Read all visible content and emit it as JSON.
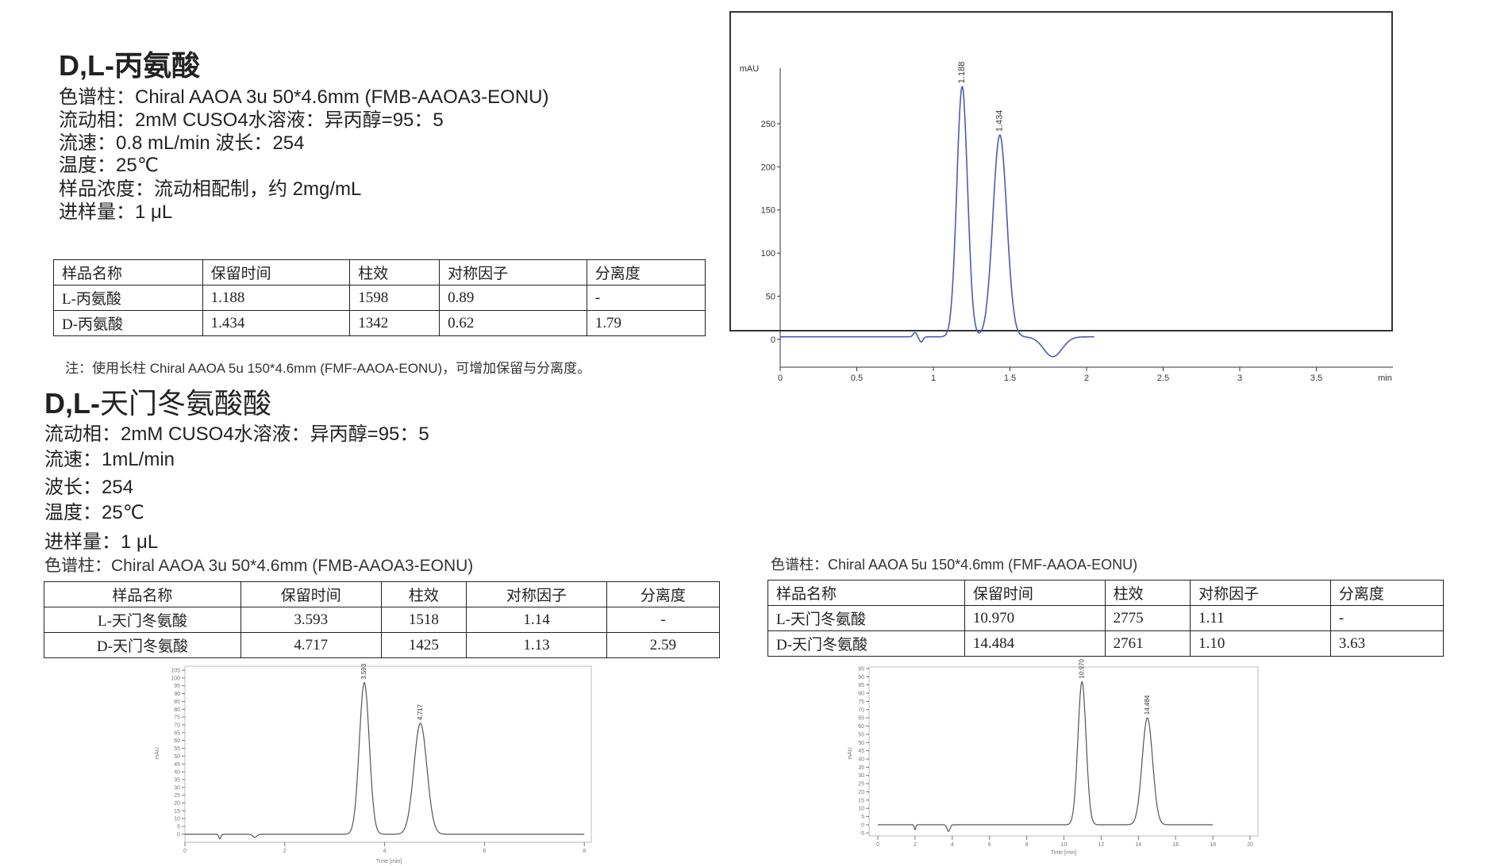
{
  "section1": {
    "title": "D,L-丙氨酸",
    "lines": [
      "色谱柱：Chiral AAOA 3u 50*4.6mm (FMB-AAOA3-EONU)",
      "流动相：2mM CUSO4水溶液：异丙醇=95：5",
      "流速：0.8 mL/min  波长：254",
      "温度：25℃",
      "样品浓度：流动相配制，约 2mg/mL",
      "进样量：1 μL"
    ],
    "table": {
      "headers": [
        "样品名称",
        "保留时间",
        "柱效",
        "对称因子",
        "分离度"
      ],
      "rows": [
        [
          "L-丙氨酸",
          "1.188",
          "1598",
          "0.89",
          "-"
        ],
        [
          "D-丙氨酸",
          "1.434",
          "1342",
          "0.62",
          "1.79"
        ]
      ]
    },
    "note": "注：使用长柱 Chiral AAOA 5u 150*4.6mm (FMF-AAOA-EONU)，可增加保留与分离度。"
  },
  "section2": {
    "title_prefix": "D,L-",
    "title_rest": "天门冬氨酸酸",
    "lines": [
      "流动相：2mM CUSO4水溶液：异丙醇=95：5",
      "流速：1mL/min",
      "波长：254",
      "温度：25℃",
      "进样量：1 μL"
    ],
    "column_left": "色谱柱：Chiral AAOA 3u 50*4.6mm (FMB-AAOA3-EONU)",
    "table_left": {
      "headers": [
        "样品名称",
        "保留时间",
        "柱效",
        "对称因子",
        "分离度"
      ],
      "rows": [
        [
          "L-天门冬氨酸",
          "3.593",
          "1518",
          "1.14",
          "-"
        ],
        [
          "D-天门冬氨酸",
          "4.717",
          "1425",
          "1.13",
          "2.59"
        ]
      ]
    },
    "column_right": "色谱柱：Chiral AAOA 5u 150*4.6mm (FMF-AAOA-EONU)",
    "table_right": {
      "headers": [
        "样品名称",
        "保留时间",
        "柱效",
        "对称因子",
        "分离度"
      ],
      "rows": [
        [
          "L-天门冬氨酸",
          "10.970",
          "2775",
          "1.11",
          "-"
        ],
        [
          "D-天门冬氨酸",
          "14.484",
          "2761",
          "1.10",
          "3.63"
        ]
      ]
    }
  },
  "chart_data": [
    {
      "type": "line",
      "ylabel": "mAU",
      "xlabel": "min",
      "xlim": [
        0,
        4
      ],
      "ylim": [
        -32,
        314
      ],
      "xticks": [
        "0",
        "0.5",
        "1",
        "1.5",
        "2",
        "2.5",
        "3",
        "3.5"
      ],
      "yticks": [
        "0",
        "50",
        "100",
        "150",
        "200",
        "250"
      ],
      "line_color": "#4a5bb5",
      "peaks": [
        {
          "label": "1.188",
          "x": 1.188,
          "y": 293
        },
        {
          "label": "1.434",
          "x": 1.434,
          "y": 237
        }
      ],
      "features": [
        {
          "x": 0.88,
          "y": 8
        },
        {
          "x": 0.92,
          "y": -3
        },
        {
          "x": 1.78,
          "y": -20
        }
      ],
      "x_end": 2.05
    },
    {
      "type": "line",
      "ylabel": "mAU",
      "xlabel": "Time [min]",
      "xlim": [
        0,
        8
      ],
      "ylim": [
        -5,
        105
      ],
      "xticks": [
        "0",
        "2",
        "4",
        "6",
        "8"
      ],
      "yticks": [
        "0",
        "5",
        "10",
        "15",
        "20",
        "25",
        "30",
        "35",
        "40",
        "45",
        "50",
        "55",
        "60",
        "65",
        "70",
        "75",
        "80",
        "85",
        "90",
        "95",
        "100",
        "105"
      ],
      "line_color": "#555555",
      "peaks": [
        {
          "label": "3.593",
          "x": 3.593,
          "y": 97
        },
        {
          "label": "4.717",
          "x": 4.717,
          "y": 71
        }
      ],
      "features": [
        {
          "x": 0.7,
          "y": -3
        },
        {
          "x": 1.4,
          "y": -2
        }
      ],
      "x_end": 8
    },
    {
      "type": "line",
      "ylabel": "mAU",
      "xlabel": "Time [min]",
      "xlim": [
        0,
        20
      ],
      "ylim": [
        -5,
        95
      ],
      "xticks": [
        "0",
        "2",
        "4",
        "6",
        "8",
        "10",
        "12",
        "14",
        "16",
        "18",
        "20"
      ],
      "yticks": [
        "-5",
        "0",
        "5",
        "10",
        "15",
        "20",
        "25",
        "30",
        "35",
        "40",
        "45",
        "50",
        "55",
        "60",
        "65",
        "70",
        "75",
        "80",
        "85",
        "90",
        "95"
      ],
      "line_color": "#555555",
      "peaks": [
        {
          "label": "10.970",
          "x": 10.97,
          "y": 87
        },
        {
          "label": "14.484",
          "x": 14.484,
          "y": 65
        }
      ],
      "features": [
        {
          "x": 2.0,
          "y": -3
        },
        {
          "x": 3.8,
          "y": -4
        }
      ],
      "x_end": 18
    }
  ]
}
